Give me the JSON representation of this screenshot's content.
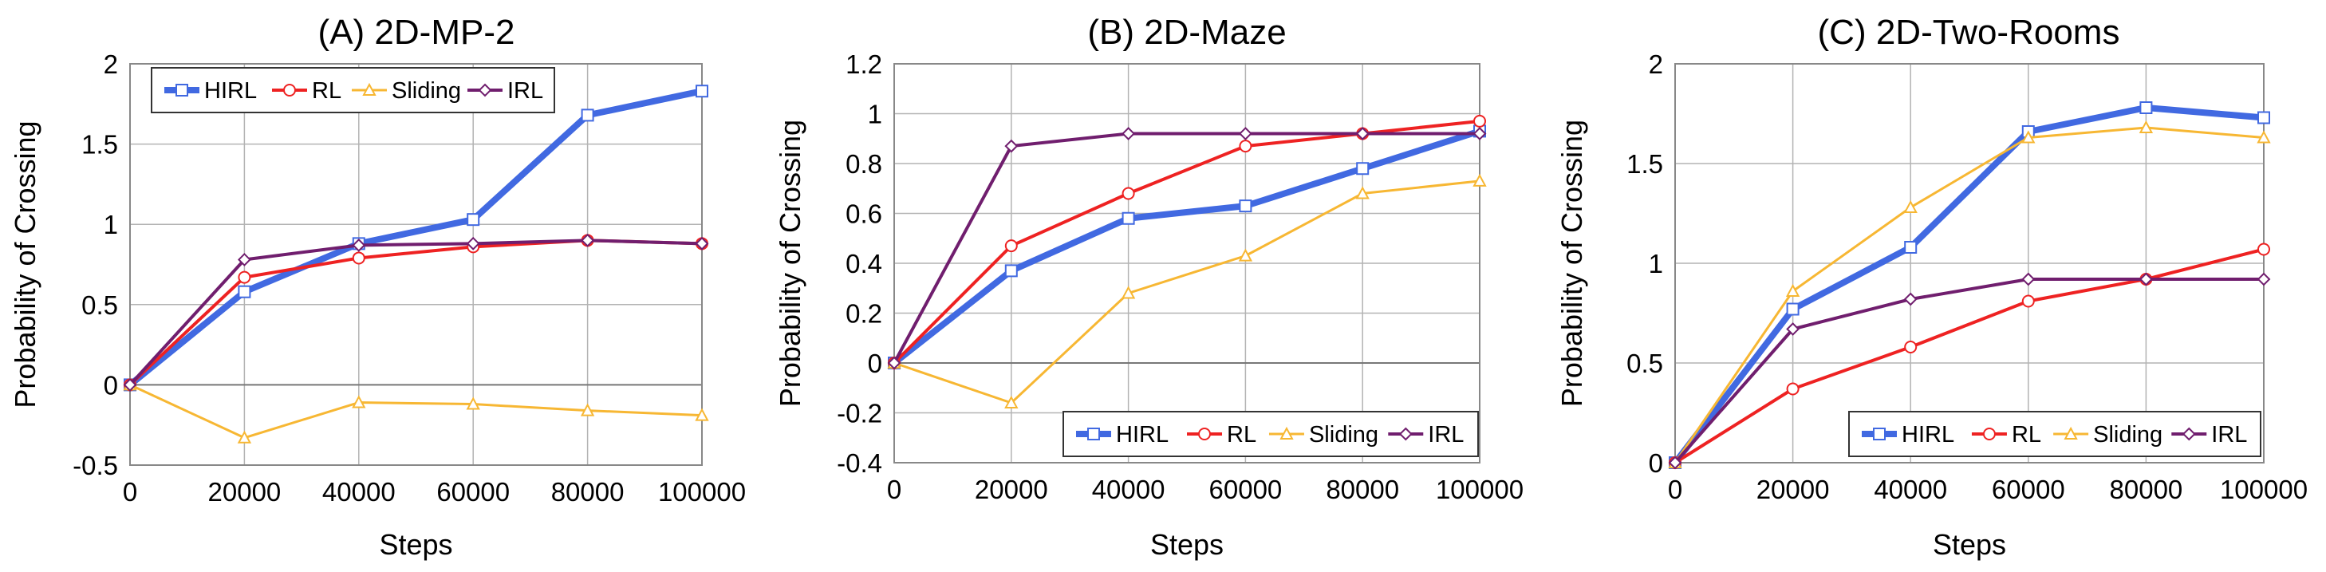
{
  "chart_data": [
    {
      "type": "line",
      "title": "(A) 2D-MP-2",
      "xlabel": "Steps",
      "ylabel": "Probability of Crossing",
      "x": [
        0,
        20000,
        40000,
        60000,
        80000,
        100000
      ],
      "xticks": [
        "0",
        "20000",
        "40000",
        "60000",
        "80000",
        "100000"
      ],
      "ylim": [
        -0.5,
        2
      ],
      "yticks": [
        "-0.5",
        "0",
        "0.5",
        "1",
        "1.5",
        "2"
      ],
      "grid": true,
      "legend_position": "top-left",
      "series": [
        {
          "name": "HIRL",
          "values": [
            0,
            0.58,
            0.88,
            1.03,
            1.68,
            1.83
          ]
        },
        {
          "name": "RL",
          "values": [
            0,
            0.67,
            0.79,
            0.86,
            0.9,
            0.88
          ]
        },
        {
          "name": "Sliding",
          "values": [
            0,
            -0.33,
            -0.11,
            -0.12,
            -0.16,
            -0.19
          ]
        },
        {
          "name": "IRL",
          "values": [
            0,
            0.78,
            0.87,
            0.88,
            0.9,
            0.88
          ]
        }
      ]
    },
    {
      "type": "line",
      "title": "(B) 2D-Maze",
      "xlabel": "Steps",
      "ylabel": "Probability of Crossing",
      "x": [
        0,
        20000,
        40000,
        60000,
        80000,
        100000
      ],
      "xticks": [
        "0",
        "20000",
        "40000",
        "60000",
        "80000",
        "100000"
      ],
      "ylim": [
        -0.4,
        1.2
      ],
      "yticks": [
        "-0.4",
        "-0.2",
        "0",
        "0.2",
        "0.4",
        "0.6",
        "0.8",
        "1",
        "1.2"
      ],
      "grid": true,
      "legend_position": "bottom-right",
      "series": [
        {
          "name": "HIRL",
          "values": [
            0,
            0.37,
            0.58,
            0.63,
            0.78,
            0.93
          ]
        },
        {
          "name": "RL",
          "values": [
            0,
            0.47,
            0.68,
            0.87,
            0.92,
            0.97
          ]
        },
        {
          "name": "Sliding",
          "values": [
            0,
            -0.16,
            0.28,
            0.43,
            0.68,
            0.73
          ]
        },
        {
          "name": "IRL",
          "values": [
            0,
            0.87,
            0.92,
            0.92,
            0.92,
            0.92
          ]
        }
      ]
    },
    {
      "type": "line",
      "title": "(C) 2D-Two-Rooms",
      "xlabel": "Steps",
      "ylabel": "Probability of Crossing",
      "x": [
        0,
        20000,
        40000,
        60000,
        80000,
        100000
      ],
      "xticks": [
        "0",
        "20000",
        "40000",
        "60000",
        "80000",
        "100000"
      ],
      "ylim": [
        0,
        2
      ],
      "yticks": [
        "0",
        "0.5",
        "1",
        "1.5",
        "2"
      ],
      "grid": true,
      "legend_position": "bottom-right",
      "series": [
        {
          "name": "HIRL",
          "values": [
            0,
            0.77,
            1.08,
            1.66,
            1.78,
            1.73
          ]
        },
        {
          "name": "RL",
          "values": [
            0,
            0.37,
            0.58,
            0.81,
            0.92,
            1.07
          ]
        },
        {
          "name": "Sliding",
          "values": [
            0,
            0.86,
            1.28,
            1.63,
            1.68,
            1.63
          ]
        },
        {
          "name": "IRL",
          "values": [
            0,
            0.67,
            0.82,
            0.92,
            0.92,
            0.92
          ]
        }
      ]
    }
  ],
  "series_colors": {
    "HIRL": "#4169E1",
    "RL": "#EE2222",
    "Sliding": "#F7B733",
    "IRL": "#701E6E"
  },
  "series_markers": {
    "HIRL": "square",
    "RL": "circle",
    "Sliding": "triangle",
    "IRL": "diamond"
  }
}
